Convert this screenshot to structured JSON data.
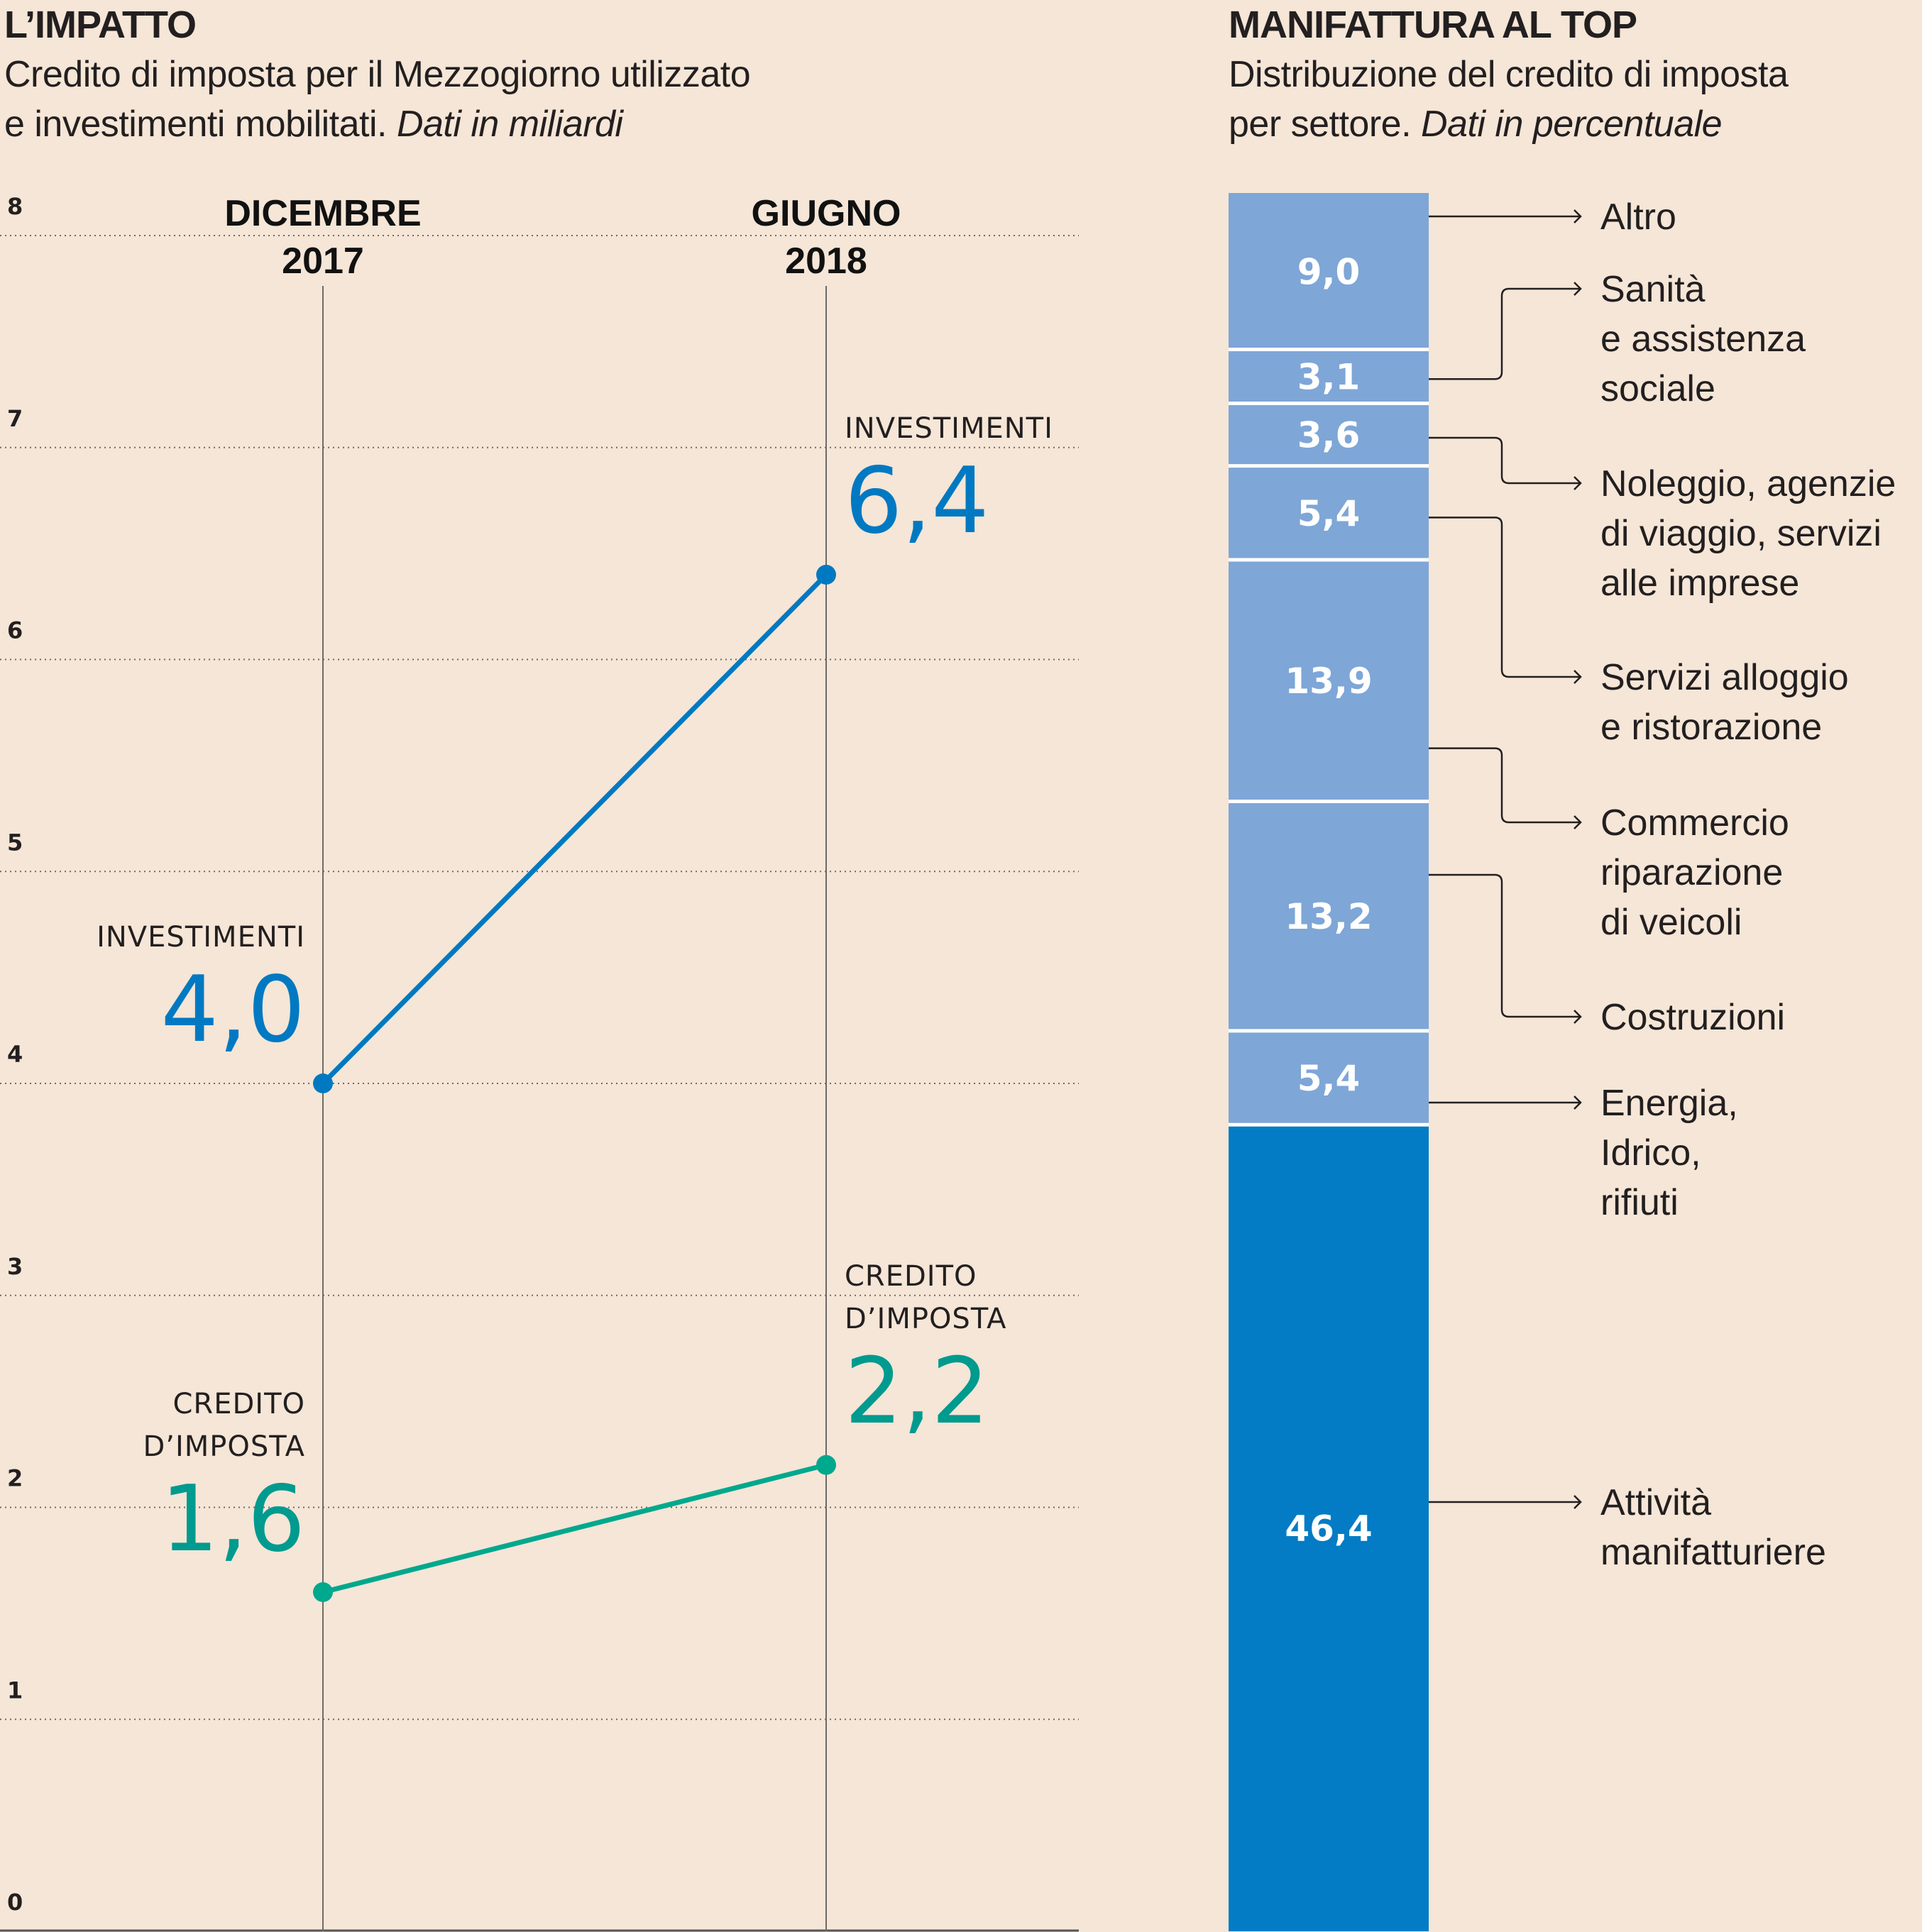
{
  "left_panel": {
    "title": "L’IMPATTO",
    "subtitle_line1": "Credito di imposta per il Mezzogiorno utilizzato",
    "subtitle_line2": "e investimenti mobilitati.",
    "subtitle_unit": "Dati in miliardi"
  },
  "right_panel": {
    "title": "MANIFATTURA AL TOP",
    "subtitle_line1": "Distribuzione del credito di imposta",
    "subtitle_line2": "per settore.",
    "subtitle_unit": "Dati in percentuale"
  },
  "colors": {
    "background": "#F5E6D7",
    "investimenti": "#0079C2",
    "credito_line": "#00A88E",
    "credito_text": "#009A8F",
    "segment_light": "#7EA6D7",
    "segment_dark": "#037CC5",
    "text": "#231F20"
  },
  "chart_data": [
    {
      "type": "line",
      "title": "L’IMPATTO",
      "subtitle": "Credito di imposta per il Mezzogiorno utilizzato e investimenti mobilitati. Dati in miliardi",
      "x": [
        {
          "line1": "DICEMBRE",
          "line2": "2017"
        },
        {
          "line1": "GIUGNO",
          "line2": "2018"
        }
      ],
      "ylim": [
        0,
        8
      ],
      "yticks": [
        "0",
        "1",
        "2",
        "3",
        "4",
        "5",
        "6",
        "7",
        "8"
      ],
      "grid": true,
      "series": [
        {
          "name": "INVESTIMENTI",
          "name_lines": [
            "INVESTIMENTI"
          ],
          "values": [
            4.0,
            6.4
          ],
          "labels": [
            "4,0",
            "6,4"
          ],
          "color_key": "investimenti"
        },
        {
          "name": "CREDITO D’IMPOSTA",
          "name_lines": [
            "CREDITO",
            "D’IMPOSTA"
          ],
          "values": [
            1.6,
            2.2
          ],
          "labels": [
            "1,6",
            "2,2"
          ],
          "color_key": "credito"
        }
      ]
    },
    {
      "type": "bar",
      "subtype": "stacked-100",
      "title": "MANIFATTURA AL TOP",
      "subtitle": "Distribuzione del credito di imposta per settore. Dati in percentuale",
      "unit": "%",
      "segments": [
        {
          "value": 9.0,
          "label": "9,0",
          "category_lines": [
            "Altro"
          ],
          "shade": "light"
        },
        {
          "value": 3.1,
          "label": "3,1",
          "category_lines": [
            "Sanità",
            "e assistenza",
            "sociale"
          ],
          "shade": "light"
        },
        {
          "value": 3.6,
          "label": "3,6",
          "category_lines": [
            "Noleggio, agenzie",
            "di viaggio, servizi",
            "alle imprese"
          ],
          "shade": "light"
        },
        {
          "value": 5.4,
          "label": "5,4",
          "category_lines": [
            "Servizi alloggio",
            "e ristorazione"
          ],
          "shade": "light"
        },
        {
          "value": 13.9,
          "label": "13,9",
          "category_lines": [
            "Commercio",
            "riparazione",
            "di veicoli"
          ],
          "shade": "light"
        },
        {
          "value": 13.2,
          "label": "13,2",
          "category_lines": [
            "Costruzioni"
          ],
          "shade": "light"
        },
        {
          "value": 5.4,
          "label": "5,4",
          "category_lines": [
            "Energia,",
            "Idrico,",
            "rifiuti"
          ],
          "shade": "light"
        },
        {
          "value": 46.4,
          "label": "46,4",
          "category_lines": [
            "Attività",
            "manifatturiere"
          ],
          "shade": "dark"
        }
      ]
    }
  ]
}
